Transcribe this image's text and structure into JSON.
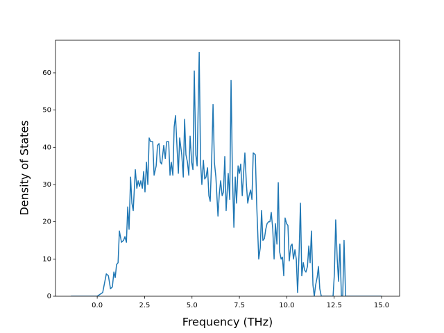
{
  "chart_data": {
    "type": "line",
    "xlabel": "Frequency (THz)",
    "ylabel": "Density of States",
    "color": "#1f77b4",
    "x": [
      -1.39,
      0,
      0.29,
      0.48,
      0.59,
      0.7,
      0.8,
      0.88,
      0.95,
      1.02,
      1.1,
      1.17,
      1.28,
      1.39,
      1.46,
      1.54,
      1.61,
      1.68,
      1.76,
      1.83,
      1.9,
      2.01,
      2.09,
      2.16,
      2.23,
      2.3,
      2.38,
      2.45,
      2.52,
      2.6,
      2.67,
      2.74,
      2.82,
      2.93,
      3.0,
      3.11,
      3.18,
      3.26,
      3.33,
      3.4,
      3.51,
      3.59,
      3.66,
      3.77,
      3.84,
      3.91,
      3.99,
      4.06,
      4.13,
      4.21,
      4.28,
      4.35,
      4.46,
      4.54,
      4.61,
      4.68,
      4.76,
      4.83,
      4.9,
      4.98,
      5.05,
      5.12,
      5.2,
      5.27,
      5.38,
      5.45,
      5.52,
      5.6,
      5.67,
      5.74,
      5.82,
      5.89,
      5.96,
      6.04,
      6.11,
      6.18,
      6.26,
      6.37,
      6.44,
      6.51,
      6.59,
      6.66,
      6.73,
      6.8,
      6.91,
      6.99,
      7.06,
      7.13,
      7.21,
      7.28,
      7.35,
      7.43,
      7.5,
      7.57,
      7.65,
      7.72,
      7.79,
      7.87,
      7.94,
      8.01,
      8.09,
      8.16,
      8.23,
      8.34,
      8.41,
      8.52,
      8.6,
      8.67,
      8.74,
      8.82,
      8.89,
      8.96,
      9.04,
      9.11,
      9.18,
      9.26,
      9.33,
      9.4,
      9.48,
      9.55,
      9.62,
      9.7,
      9.77,
      9.84,
      9.91,
      9.99,
      10.06,
      10.13,
      10.21,
      10.28,
      10.35,
      10.43,
      10.5,
      10.57,
      10.65,
      10.72,
      10.79,
      10.87,
      10.94,
      11.01,
      11.09,
      11.16,
      11.23,
      11.3,
      11.38,
      11.45,
      11.52,
      11.6,
      11.67,
      11.74,
      11.82,
      12.44,
      12.51,
      12.58,
      12.66,
      12.73,
      12.8,
      12.88,
      12.95,
      13.02,
      13.1,
      15.0
    ],
    "values": [
      0,
      0,
      1,
      6,
      5.5,
      2,
      2.5,
      6.5,
      5,
      8.5,
      9,
      17.5,
      14.5,
      15,
      16,
      14.5,
      24,
      18,
      32,
      25,
      23,
      34,
      29,
      31,
      29.5,
      31,
      29,
      33.5,
      28,
      36,
      30,
      42.5,
      41.5,
      41.5,
      32.5,
      35,
      40.5,
      41,
      36,
      35.5,
      40.5,
      37,
      41.5,
      41.5,
      32.5,
      36,
      32.5,
      45.5,
      48.5,
      40,
      33,
      42.5,
      38,
      32,
      47.5,
      38,
      36,
      32.5,
      43,
      36,
      34,
      60.5,
      38,
      35,
      65.5,
      36,
      30,
      36.5,
      31.5,
      32,
      34.5,
      27,
      25.5,
      37,
      51.5,
      36,
      32,
      21.5,
      27.5,
      31,
      27,
      28,
      37.5,
      23,
      33,
      26,
      58,
      33,
      18.5,
      32,
      25,
      35,
      33,
      35.5,
      27,
      33,
      38.5,
      30,
      25,
      27,
      28.5,
      26,
      38.5,
      38,
      25,
      10,
      13,
      23,
      15,
      15.5,
      18,
      19.5,
      20,
      20,
      22.5,
      18,
      10,
      19.5,
      14,
      30.5,
      12,
      10,
      10.5,
      5.5,
      21,
      19.5,
      19,
      9.5,
      13.5,
      14,
      10,
      12.5,
      10,
      1,
      12,
      25,
      5.5,
      9,
      7,
      6.5,
      8,
      13.5,
      9,
      17.5,
      3,
      0,
      3,
      5,
      8,
      2,
      0,
      0,
      6,
      20.5,
      10,
      4,
      14,
      0,
      0,
      15,
      0,
      0
    ],
    "xlim": [
      -2.2,
      15.95
    ],
    "ylim": [
      0,
      68.75
    ],
    "xticks": [
      {
        "value": 0,
        "label": "0.0"
      },
      2.5,
      {
        "value": 5,
        "label": "5.0"
      },
      7.5,
      {
        "value": 10,
        "label": "10.0"
      },
      12.5,
      {
        "value": 15,
        "label": "15.0"
      }
    ],
    "yticks": [
      0,
      10,
      20,
      30,
      40,
      50,
      60
    ],
    "grid": false
  }
}
